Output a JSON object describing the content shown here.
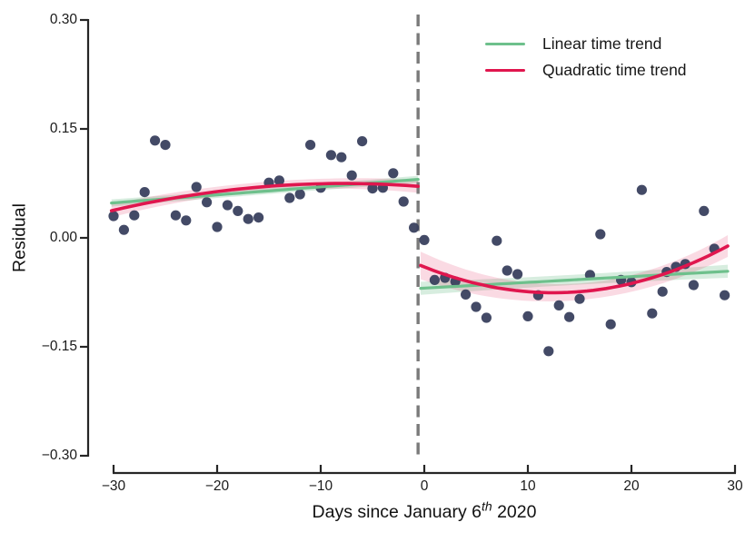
{
  "chart_data": {
    "type": "scatter",
    "title": "",
    "ylabel": "Residual",
    "xlabel": {
      "pre": "Days since January 6",
      "sup": "th",
      "post": " 2020"
    },
    "xlim": [
      -32,
      31
    ],
    "ylim": [
      -0.3,
      0.3
    ],
    "x_tick_values": [
      -30,
      -20,
      -10,
      0,
      10,
      20,
      30
    ],
    "x_tick_labels": [
      "−30",
      "−20",
      "−10",
      "0",
      "10",
      "20",
      "30"
    ],
    "y_tick_values": [
      0.3,
      0.15,
      0.0,
      -0.15,
      -0.3
    ],
    "y_tick_labels": [
      "0.30",
      "0.15",
      "0.00",
      "−0.15",
      "−0.30"
    ],
    "cutoff_x": -0.6,
    "grid": false,
    "legend_position": "upper right inside",
    "legend_items": [
      {
        "label": "Linear time trend",
        "color": "#6ec08c"
      },
      {
        "label": "Quadratic time trend",
        "color": "#e0164e"
      }
    ],
    "series": [
      {
        "name": "residuals_pre_period",
        "points": [
          [
            -30,
            0.03
          ],
          [
            -29,
            0.011
          ],
          [
            -28,
            0.031
          ],
          [
            -27,
            0.063
          ],
          [
            -26,
            0.134
          ],
          [
            -25,
            0.128
          ],
          [
            -24,
            0.031
          ],
          [
            -23,
            0.024
          ],
          [
            -22,
            0.07
          ],
          [
            -21,
            0.049
          ],
          [
            -20,
            0.015
          ],
          [
            -19,
            0.045
          ],
          [
            -18,
            0.037
          ],
          [
            -17,
            0.026
          ],
          [
            -16,
            0.028
          ],
          [
            -15,
            0.076
          ],
          [
            -14,
            0.079
          ],
          [
            -13,
            0.055
          ],
          [
            -12,
            0.06
          ],
          [
            -11,
            0.128
          ],
          [
            -10,
            0.069
          ],
          [
            -9,
            0.114
          ],
          [
            -8,
            0.111
          ],
          [
            -7,
            0.086
          ],
          [
            -6,
            0.133
          ],
          [
            -5,
            0.068
          ],
          [
            -4,
            0.069
          ],
          [
            -3,
            0.089
          ],
          [
            -2,
            0.05
          ],
          [
            -1,
            0.014
          ]
        ]
      },
      {
        "name": "residuals_post_period",
        "points": [
          [
            0,
            -0.003
          ],
          [
            1,
            -0.058
          ],
          [
            2,
            -0.055
          ],
          [
            3,
            -0.06
          ],
          [
            4,
            -0.078
          ],
          [
            5,
            -0.095
          ],
          [
            6,
            -0.11
          ],
          [
            7,
            -0.004
          ],
          [
            8,
            -0.045
          ],
          [
            9,
            -0.05
          ],
          [
            10,
            -0.108
          ],
          [
            11,
            -0.079
          ],
          [
            12,
            -0.156
          ],
          [
            13,
            -0.093
          ],
          [
            14,
            -0.109
          ],
          [
            15,
            -0.084
          ],
          [
            16,
            -0.051
          ],
          [
            17,
            0.005
          ],
          [
            18,
            -0.119
          ],
          [
            19,
            -0.058
          ],
          [
            20,
            -0.061
          ],
          [
            21,
            0.066
          ],
          [
            22,
            -0.104
          ],
          [
            23,
            -0.074
          ],
          [
            23.4,
            -0.047
          ],
          [
            24.3,
            -0.04
          ],
          [
            25.2,
            -0.036
          ],
          [
            26,
            -0.065
          ],
          [
            27,
            0.037
          ],
          [
            28,
            -0.015
          ],
          [
            29,
            -0.079
          ]
        ]
      }
    ],
    "fits": {
      "pre_linear": {
        "kind": "linear",
        "x0": -30.2,
        "x1": -0.6,
        "y0": 0.048,
        "y1": 0.0805,
        "band": [
          0.005,
          0.0035,
          0.005
        ]
      },
      "post_linear": {
        "kind": "linear",
        "x0": -0.35,
        "x1": 29.3,
        "y0": -0.0695,
        "y1": -0.046,
        "band": [
          0.009,
          0.005,
          0.009
        ]
      },
      "pre_quadratic": {
        "kind": "quadratic",
        "x0": -30.2,
        "x1": -0.6,
        "a": -7.474e-05,
        "b": -0.0011646,
        "c": 0.070329,
        "band": [
          0.009,
          0.004,
          0.009
        ]
      },
      "post_quadratic": {
        "kind": "quadratic",
        "x0": -0.35,
        "x1": 29.3,
        "a": 0.00022777,
        "b": -0.0056913,
        "c": -0.04,
        "band": [
          0.019,
          0.006,
          0.015
        ]
      }
    },
    "colors": {
      "scatter": "#39405e",
      "linear_line": "#6ec08c",
      "linear_band": "rgba(110,192,140,0.28)",
      "quadratic_line": "#e0164e",
      "quadratic_band": "rgba(224,22,79,0.16)",
      "cutoff_line": "#7a7a7a",
      "axis": "#262626"
    }
  }
}
